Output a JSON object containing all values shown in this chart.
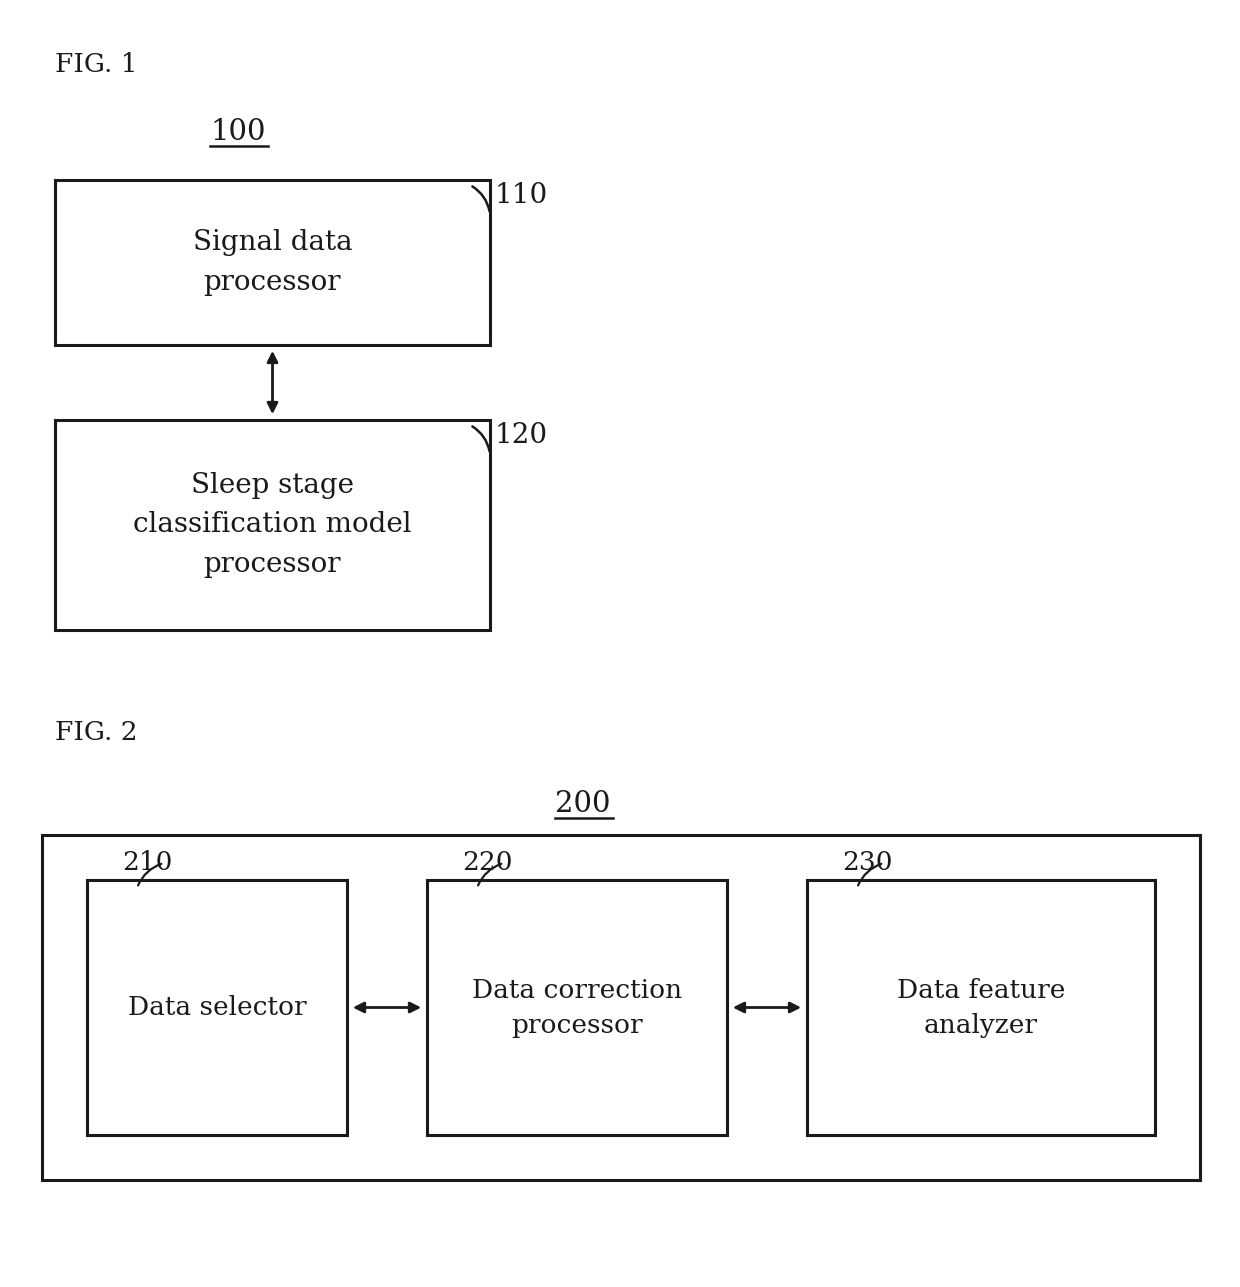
{
  "background_color": "#ffffff",
  "fig_width": 12.4,
  "fig_height": 12.87,
  "dpi": 100,
  "fig1_label": "FIG. 1",
  "fig2_label": "FIG. 2",
  "ref_100_label": "100",
  "ref_200_label": "200",
  "box110_label": "Signal data\nprocessor",
  "box110_ref": "110",
  "box120_label": "Sleep stage\nclassification model\nprocessor",
  "box120_ref": "120",
  "box210_label": "Data selector",
  "box210_ref": "210",
  "box220_label": "Data correction\nprocessor",
  "box220_ref": "220",
  "box230_label": "Data feature\nanalyzer",
  "box230_ref": "230",
  "text_color": "#1a1a1a",
  "box_edge_color": "#1a1a1a",
  "arrow_color": "#1a1a1a",
  "font_family": "DejaVu Serif"
}
